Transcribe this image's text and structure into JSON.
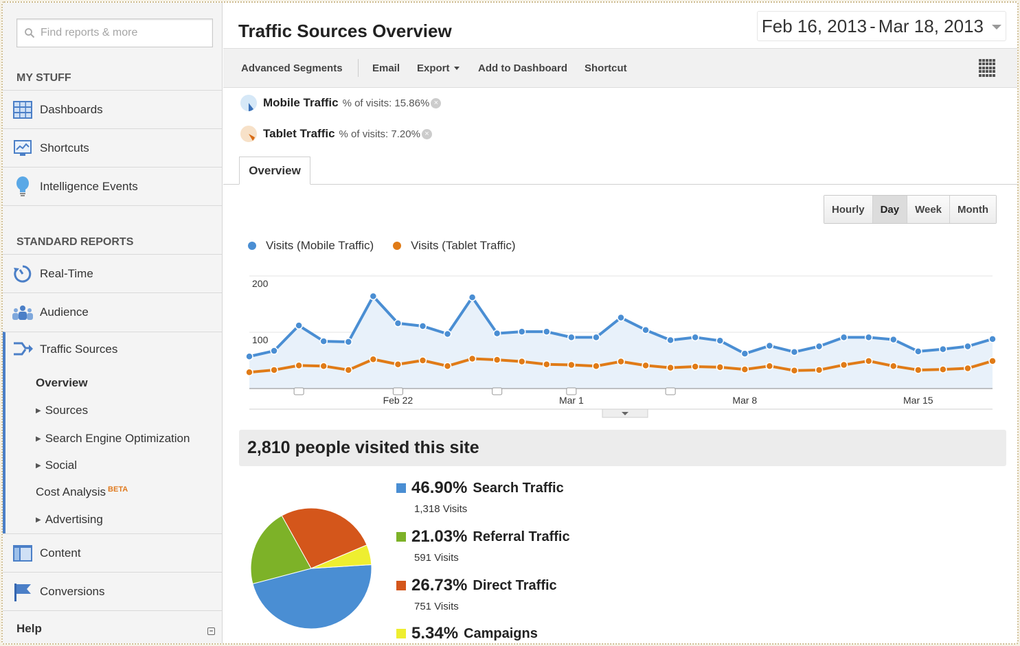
{
  "sidebar": {
    "search_placeholder": "Find reports & more",
    "my_stuff_title": "MY STUFF",
    "my_stuff": [
      {
        "label": "Dashboards",
        "icon": "dashboards-icon"
      },
      {
        "label": "Shortcuts",
        "icon": "shortcuts-icon"
      },
      {
        "label": "Intelligence Events",
        "icon": "intelligence-events-icon"
      }
    ],
    "standard_reports_title": "STANDARD REPORTS",
    "reports": [
      {
        "label": "Real-Time",
        "icon": "real-time-icon"
      },
      {
        "label": "Audience",
        "icon": "audience-icon"
      },
      {
        "label": "Traffic Sources",
        "icon": "traffic-sources-icon"
      }
    ],
    "traffic_sub": [
      {
        "label": "Overview",
        "active": true
      },
      {
        "label": "Sources",
        "expandable": true
      },
      {
        "label": "Search Engine Optimization",
        "expandable": true
      },
      {
        "label": "Social",
        "expandable": true
      },
      {
        "label": "Cost Analysis",
        "badge": "BETA"
      },
      {
        "label": "Advertising",
        "expandable": true
      }
    ],
    "reports_bottom": [
      {
        "label": "Content",
        "icon": "content-icon"
      },
      {
        "label": "Conversions",
        "icon": "conversions-icon"
      }
    ],
    "help": "Help"
  },
  "header": {
    "title": "Traffic Sources Overview",
    "date_start": "Feb 16, 2013",
    "date_sep": "-",
    "date_end": "Mar 18, 2013"
  },
  "toolbar": {
    "advanced_segments": "Advanced Segments",
    "email": "Email",
    "export": "Export",
    "add_to_dashboard": "Add to Dashboard",
    "shortcut": "Shortcut"
  },
  "segments": [
    {
      "name": "Mobile Traffic",
      "pct_label": "% of visits: 15.86%",
      "color": "#d6e8f7"
    },
    {
      "name": "Tablet Traffic",
      "pct_label": "% of visits: 7.20%",
      "color": "#f7e1c8"
    }
  ],
  "tabs": {
    "overview": "Overview"
  },
  "granularity": {
    "hourly": "Hourly",
    "day": "Day",
    "week": "Week",
    "month": "Month",
    "selected": "Day"
  },
  "colors": {
    "mobile": "#4a8ed3",
    "tablet": "#e07b17",
    "search": "#4a8ed3",
    "referral": "#7db228",
    "direct": "#d4561b",
    "campaigns": "#eeee30"
  },
  "chart_data": [
    {
      "type": "line",
      "x": [
        "Feb 16",
        "Feb 17",
        "Feb 18",
        "Feb 19",
        "Feb 20",
        "Feb 21",
        "Feb 22",
        "Feb 23",
        "Feb 24",
        "Feb 25",
        "Feb 26",
        "Feb 27",
        "Feb 28",
        "Mar 1",
        "Mar 2",
        "Mar 3",
        "Mar 4",
        "Mar 5",
        "Mar 6",
        "Mar 7",
        "Mar 8",
        "Mar 9",
        "Mar 10",
        "Mar 11",
        "Mar 12",
        "Mar 13",
        "Mar 14",
        "Mar 15",
        "Mar 16",
        "Mar 17",
        "Mar 18"
      ],
      "x_tick_labels": [
        "Feb 22",
        "Mar 1",
        "Mar 8",
        "Mar 15"
      ],
      "y_tick_labels": [
        "100",
        "200"
      ],
      "ylim": [
        0,
        200
      ],
      "grid": true,
      "legend_position": "top-left",
      "series": [
        {
          "name": "Visits (Mobile Traffic)",
          "values": [
            57,
            67,
            112,
            84,
            83,
            164,
            116,
            111,
            97,
            162,
            98,
            101,
            101,
            91,
            91,
            126,
            104,
            86,
            91,
            85,
            62,
            76,
            65,
            75,
            91,
            91,
            87,
            66,
            70,
            75,
            88
          ]
        },
        {
          "name": "Visits (Tablet Traffic)",
          "values": [
            29,
            33,
            41,
            40,
            33,
            52,
            43,
            50,
            40,
            53,
            51,
            48,
            43,
            42,
            40,
            48,
            41,
            37,
            39,
            38,
            34,
            40,
            32,
            33,
            42,
            49,
            40,
            33,
            34,
            36,
            49
          ]
        }
      ]
    },
    {
      "type": "pie",
      "title": "2,810 people visited this site",
      "categories": [
        "Search Traffic",
        "Referral Traffic",
        "Direct Traffic",
        "Campaigns"
      ],
      "values": [
        46.9,
        21.03,
        26.73,
        5.34
      ],
      "visits": [
        "1,318 Visits",
        "591 Visits",
        "751 Visits",
        ""
      ],
      "pct_labels": [
        "46.90%",
        "21.03%",
        "26.73%",
        "5.34%"
      ]
    }
  ]
}
